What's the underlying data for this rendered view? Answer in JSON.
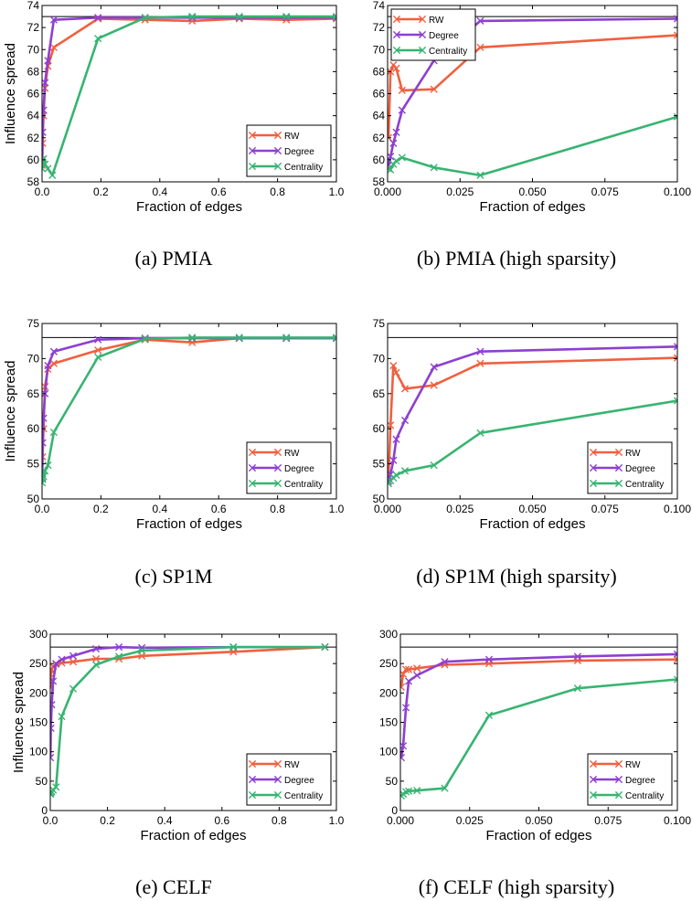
{
  "colors": {
    "RW": "#f0603f",
    "Degree": "#8e3fd0",
    "Centrality": "#37b471",
    "baseline": "#000000"
  },
  "chart_data": [
    {
      "type": "line",
      "caption": "(a) PMIA",
      "xlabel": "Fraction of edges",
      "ylabel": "Influence spread",
      "xlim": [
        0,
        1.0
      ],
      "ylim": [
        58,
        74
      ],
      "xticks": [
        "0.0",
        "0.2",
        "0.4",
        "0.6",
        "0.8",
        "1.0"
      ],
      "xtick_values": [
        0,
        0.2,
        0.4,
        0.6,
        0.8,
        1.0
      ],
      "yticks": [
        "58",
        "60",
        "62",
        "64",
        "66",
        "68",
        "70",
        "72",
        "74"
      ],
      "ytick_values": [
        58,
        60,
        62,
        64,
        66,
        68,
        70,
        72,
        74
      ],
      "baseline": 73,
      "legend": "lower-right",
      "series": [
        {
          "name": "RW",
          "x": [
            0.0005,
            0.002,
            0.005,
            0.01,
            0.02,
            0.04,
            0.19,
            0.35,
            0.51,
            0.67,
            0.83,
            1.0
          ],
          "y": [
            59.5,
            61.5,
            64,
            66.5,
            68.5,
            70.2,
            72.8,
            72.7,
            72.6,
            72.8,
            72.7,
            72.8
          ]
        },
        {
          "name": "Degree",
          "x": [
            0.0005,
            0.002,
            0.005,
            0.01,
            0.02,
            0.04,
            0.19,
            0.35,
            0.51,
            0.67,
            0.83,
            1.0
          ],
          "y": [
            60,
            62.5,
            64.5,
            67,
            69,
            72.7,
            72.9,
            72.9,
            72.9,
            72.9,
            72.9,
            72.9
          ]
        },
        {
          "name": "Centrality",
          "x": [
            0.0005,
            0.002,
            0.005,
            0.01,
            0.02,
            0.035,
            0.19,
            0.35,
            0.51,
            0.67,
            0.83,
            1.0
          ],
          "y": [
            59.2,
            59.8,
            60.1,
            59.6,
            59.2,
            58.6,
            71,
            72.9,
            73,
            73,
            73,
            73
          ]
        }
      ]
    },
    {
      "type": "line",
      "caption": "(b) PMIA (high sparsity)",
      "xlabel": "Fraction of edges",
      "ylabel": "",
      "xlim": [
        0,
        0.1
      ],
      "ylim": [
        58,
        74
      ],
      "xticks": [
        "0.000",
        "0.025",
        "0.050",
        "0.075",
        "0.100"
      ],
      "xtick_values": [
        0,
        0.025,
        0.05,
        0.075,
        0.1
      ],
      "yticks": [
        "58",
        "60",
        "62",
        "64",
        "66",
        "68",
        "70",
        "72",
        "74"
      ],
      "ytick_values": [
        58,
        60,
        62,
        64,
        66,
        68,
        70,
        72,
        74
      ],
      "baseline": 73,
      "legend": "top-left",
      "series": [
        {
          "name": "RW",
          "x": [
            0.0003,
            0.001,
            0.002,
            0.003,
            0.005,
            0.016,
            0.032,
            0.1
          ],
          "y": [
            62,
            68,
            68.6,
            68.3,
            66.3,
            66.4,
            70.2,
            71.3
          ]
        },
        {
          "name": "Degree",
          "x": [
            0.0003,
            0.001,
            0.002,
            0.003,
            0.005,
            0.016,
            0.032,
            0.1
          ],
          "y": [
            59.5,
            60.3,
            61.5,
            62.5,
            64.5,
            69,
            72.6,
            72.8
          ]
        },
        {
          "name": "Centrality",
          "x": [
            0.0003,
            0.001,
            0.002,
            0.003,
            0.005,
            0.016,
            0.032,
            0.1
          ],
          "y": [
            59.2,
            59.1,
            59.6,
            59.9,
            60.2,
            59.3,
            58.6,
            63.9
          ]
        }
      ]
    },
    {
      "type": "line",
      "caption": "(c) SP1M",
      "xlabel": "Fraction of edges",
      "ylabel": "Influence spread",
      "xlim": [
        0,
        1.0
      ],
      "ylim": [
        50,
        75
      ],
      "xticks": [
        "0.0",
        "0.2",
        "0.4",
        "0.6",
        "0.8",
        "1.0"
      ],
      "xtick_values": [
        0,
        0.2,
        0.4,
        0.6,
        0.8,
        1.0
      ],
      "yticks": [
        "50",
        "55",
        "60",
        "65",
        "70",
        "75"
      ],
      "ytick_values": [
        50,
        55,
        60,
        65,
        70,
        75
      ],
      "baseline": 73,
      "legend": "lower-right",
      "series": [
        {
          "name": "RW",
          "x": [
            0.0005,
            0.002,
            0.005,
            0.01,
            0.02,
            0.04,
            0.19,
            0.35,
            0.51,
            0.67,
            0.83,
            1.0
          ],
          "y": [
            53,
            56,
            60,
            66,
            68.5,
            69.3,
            71.2,
            72.7,
            72.3,
            72.9,
            72.9,
            72.9
          ]
        },
        {
          "name": "Degree",
          "x": [
            0.0005,
            0.002,
            0.005,
            0.01,
            0.02,
            0.04,
            0.19,
            0.35,
            0.51,
            0.67,
            0.83,
            1.0
          ],
          "y": [
            53,
            58,
            61.5,
            65,
            69,
            71,
            72.7,
            72.9,
            72.9,
            72.9,
            72.9,
            72.9
          ]
        },
        {
          "name": "Centrality",
          "x": [
            0.0005,
            0.002,
            0.005,
            0.01,
            0.02,
            0.04,
            0.19,
            0.35,
            0.51,
            0.67,
            0.83,
            1.0
          ],
          "y": [
            52.3,
            52.8,
            53.2,
            54,
            54.8,
            59.5,
            70.2,
            72.8,
            73,
            73,
            73,
            73
          ]
        }
      ]
    },
    {
      "type": "line",
      "caption": "(d) SP1M (high sparsity)",
      "xlabel": "Fraction of edges",
      "ylabel": "",
      "xlim": [
        0,
        0.1
      ],
      "ylim": [
        50,
        75
      ],
      "xticks": [
        "0.000",
        "0.025",
        "0.050",
        "0.075",
        "0.100"
      ],
      "xtick_values": [
        0,
        0.025,
        0.05,
        0.075,
        0.1
      ],
      "yticks": [
        "50",
        "55",
        "60",
        "65",
        "70",
        "75"
      ],
      "ytick_values": [
        50,
        55,
        60,
        65,
        70,
        75
      ],
      "baseline": 73,
      "legend": "lower-right",
      "series": [
        {
          "name": "RW",
          "x": [
            0.0003,
            0.001,
            0.002,
            0.003,
            0.006,
            0.016,
            0.032,
            0.1
          ],
          "y": [
            53,
            60.5,
            69,
            68,
            65.7,
            66.2,
            69.3,
            70.1
          ]
        },
        {
          "name": "Degree",
          "x": [
            0.0003,
            0.001,
            0.002,
            0.003,
            0.006,
            0.016,
            0.032,
            0.1
          ],
          "y": [
            52.5,
            53.5,
            55.5,
            58.5,
            61.2,
            68.8,
            71,
            71.7
          ]
        },
        {
          "name": "Centrality",
          "x": [
            0.0003,
            0.001,
            0.002,
            0.003,
            0.006,
            0.016,
            0.032,
            0.1
          ],
          "y": [
            52.2,
            52.6,
            53,
            53.4,
            54,
            54.8,
            59.4,
            64
          ]
        }
      ]
    },
    {
      "type": "line",
      "caption": "(e) CELF",
      "xlabel": "Fraction of edges",
      "ylabel": "Influence spread",
      "xlim": [
        0,
        1.0
      ],
      "ylim": [
        0,
        300
      ],
      "xticks": [
        "0.0",
        "0.2",
        "0.4",
        "0.6",
        "0.8",
        "1.0"
      ],
      "xtick_values": [
        0,
        0.2,
        0.4,
        0.6,
        0.8,
        1.0
      ],
      "yticks": [
        "0",
        "50",
        "100",
        "150",
        "200",
        "250",
        "300"
      ],
      "ytick_values": [
        0,
        50,
        100,
        150,
        200,
        250,
        300
      ],
      "baseline": 278,
      "legend": "lower-right",
      "series": [
        {
          "name": "RW",
          "x": [
            0.0005,
            0.002,
            0.005,
            0.01,
            0.02,
            0.04,
            0.08,
            0.16,
            0.24,
            0.32,
            0.64,
            0.96
          ],
          "y": [
            210,
            232,
            240,
            245,
            249,
            251,
            253,
            258,
            258,
            263,
            270,
            278
          ]
        },
        {
          "name": "Degree",
          "x": [
            0.0005,
            0.002,
            0.005,
            0.01,
            0.02,
            0.04,
            0.08,
            0.16,
            0.24,
            0.32,
            0.64,
            0.96
          ],
          "y": [
            90,
            140,
            180,
            220,
            250,
            257,
            263,
            275,
            278,
            277,
            278,
            278
          ]
        },
        {
          "name": "Centrality",
          "x": [
            0.0005,
            0.002,
            0.005,
            0.01,
            0.02,
            0.04,
            0.08,
            0.16,
            0.24,
            0.32,
            0.64,
            0.96
          ],
          "y": [
            28,
            30,
            32,
            35,
            40,
            160,
            207,
            248,
            262,
            272,
            278,
            278
          ]
        }
      ]
    },
    {
      "type": "line",
      "caption": "(f) CELF (high sparsity)",
      "xlabel": "Fraction of edges",
      "ylabel": "",
      "xlim": [
        0,
        0.1
      ],
      "ylim": [
        0,
        300
      ],
      "xticks": [
        "0.000",
        "0.025",
        "0.050",
        "0.075",
        "0.100"
      ],
      "xtick_values": [
        0,
        0.025,
        0.05,
        0.075,
        0.1
      ],
      "yticks": [
        "0",
        "50",
        "100",
        "150",
        "200",
        "250",
        "300"
      ],
      "ytick_values": [
        0,
        50,
        100,
        150,
        200,
        250,
        300
      ],
      "baseline": 278,
      "legend": "lower-right",
      "series": [
        {
          "name": "RW",
          "x": [
            0.0003,
            0.001,
            0.002,
            0.003,
            0.006,
            0.016,
            0.032,
            0.064,
            0.1
          ],
          "y": [
            210,
            232,
            240,
            240,
            242,
            248,
            250,
            255,
            257
          ]
        },
        {
          "name": "Degree",
          "x": [
            0.0003,
            0.001,
            0.002,
            0.003,
            0.006,
            0.016,
            0.032,
            0.064,
            0.1
          ],
          "y": [
            90,
            110,
            175,
            220,
            230,
            253,
            257,
            262,
            266
          ]
        },
        {
          "name": "Centrality",
          "x": [
            0.0003,
            0.001,
            0.002,
            0.003,
            0.006,
            0.016,
            0.032,
            0.064,
            0.1
          ],
          "y": [
            25,
            28,
            32,
            33,
            34,
            38,
            162,
            208,
            223
          ]
        }
      ]
    }
  ]
}
